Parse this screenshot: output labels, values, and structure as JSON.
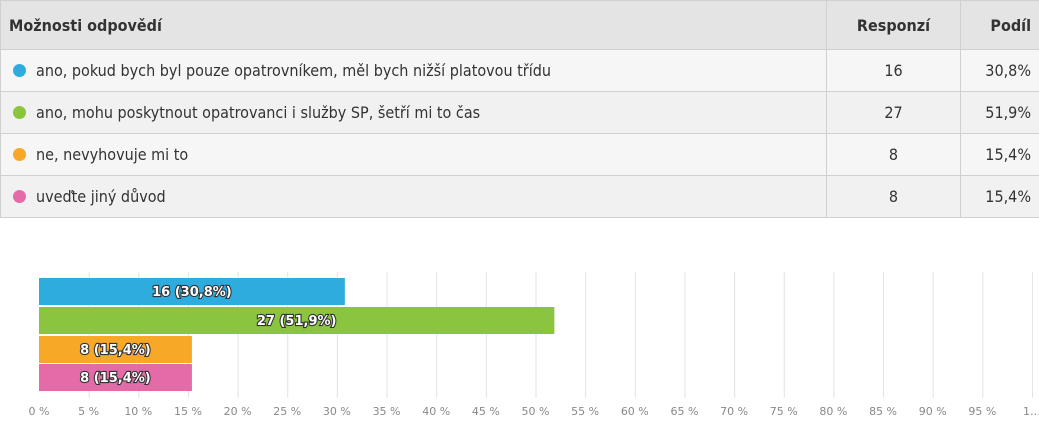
{
  "table": {
    "headers": [
      "Možnosti odpovědí",
      "Responzí",
      "Podíl"
    ],
    "rows": [
      {
        "label": "ano, pokud bych byl pouze opatrovníkem, měl bych nižší platovou třídu",
        "count": "16",
        "share": "30,8%",
        "color": "#2eacde"
      },
      {
        "label": "ano, mohu poskytnout opatrovanci i služby SP, šetří mi to čas",
        "count": "27",
        "share": "51,9%",
        "color": "#8bc43f"
      },
      {
        "label": "ne, nevyhovuje mi to",
        "count": "8",
        "share": "15,4%",
        "color": "#f7a827"
      },
      {
        "label": "uveďte jiný důvod",
        "count": "8",
        "share": "15,4%",
        "color": "#e56aa8"
      }
    ]
  },
  "chart_data": {
    "type": "bar",
    "orientation": "horizontal",
    "series": [
      {
        "values": [
          30.8,
          51.9,
          15.4,
          15.4
        ]
      }
    ],
    "bar_labels": [
      "16 (30,8%)",
      "27 (51,9%)",
      "8 (15,4%)",
      "8 (15,4%)"
    ],
    "colors": [
      "#2eacde",
      "#8bc43f",
      "#f7a827",
      "#e56aa8"
    ],
    "xlim": [
      0,
      100
    ],
    "x_ticks": [
      "0 %",
      "5 %",
      "10 %",
      "15 %",
      "20 %",
      "25 %",
      "30 %",
      "35 %",
      "40 %",
      "45 %",
      "50 %",
      "55 %",
      "60 %",
      "65 %",
      "70 %",
      "75 %",
      "80 %",
      "85 %",
      "90 %",
      "95 %",
      "1…"
    ],
    "grid": true
  }
}
